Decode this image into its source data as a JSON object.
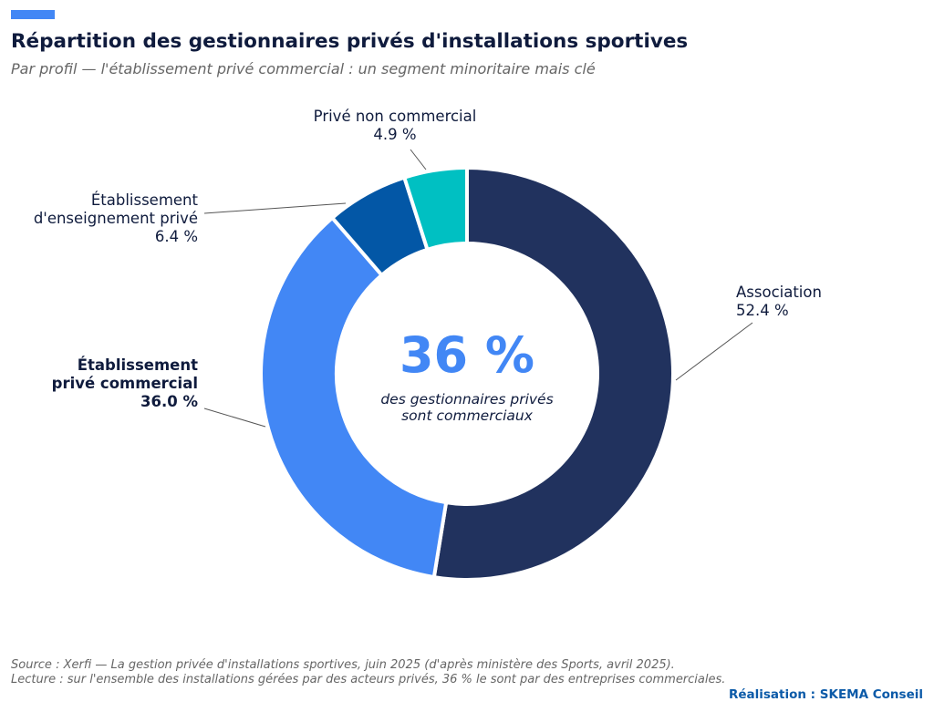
{
  "header": {
    "title": "Répartition des gestionnaires privés d'installations sportives",
    "subtitle": "Par profil — l'établissement privé commercial : un segment minoritaire mais clé"
  },
  "chart_data": {
    "type": "pie",
    "variant": "donut",
    "categories": [
      "Association",
      "Établissement privé commercial",
      "Établissement d'enseignement privé",
      "Privé non commercial"
    ],
    "values": [
      52.4,
      36.0,
      6.4,
      4.9
    ],
    "colors": [
      "#21325e",
      "#4287f5",
      "#0357a6",
      "#00c0c2"
    ],
    "labels": [
      {
        "lines": [
          "Association",
          "52.4 %"
        ],
        "bold": false
      },
      {
        "lines": [
          "Établissement",
          "privé commercial",
          "36.0 %"
        ],
        "bold": true
      },
      {
        "lines": [
          "Établissement",
          "d'enseignement privé",
          "6.4 %"
        ],
        "bold": false
      },
      {
        "lines": [
          "Privé non commercial",
          "4.9 %"
        ],
        "bold": false
      }
    ],
    "center": {
      "value": "36 %",
      "caption_lines": [
        "des gestionnaires privés",
        "sont commerciaux"
      ]
    },
    "start": "top",
    "direction": "clockwise"
  },
  "footer": {
    "source": "Source : Xerfi — La gestion privée d'installations sportives, juin 2025 (d'après ministère des Sports, avril 2025).",
    "reading": "Lecture : sur l'ensemble des installations gérées par des acteurs privés, 36 % le sont par des entreprises commerciales.",
    "credit": "Réalisation : SKEMA Conseil"
  },
  "colors": {
    "accent": "#4287f5",
    "title": "#0f1b3d",
    "muted": "#666666",
    "credit": "#0b5aa8"
  }
}
